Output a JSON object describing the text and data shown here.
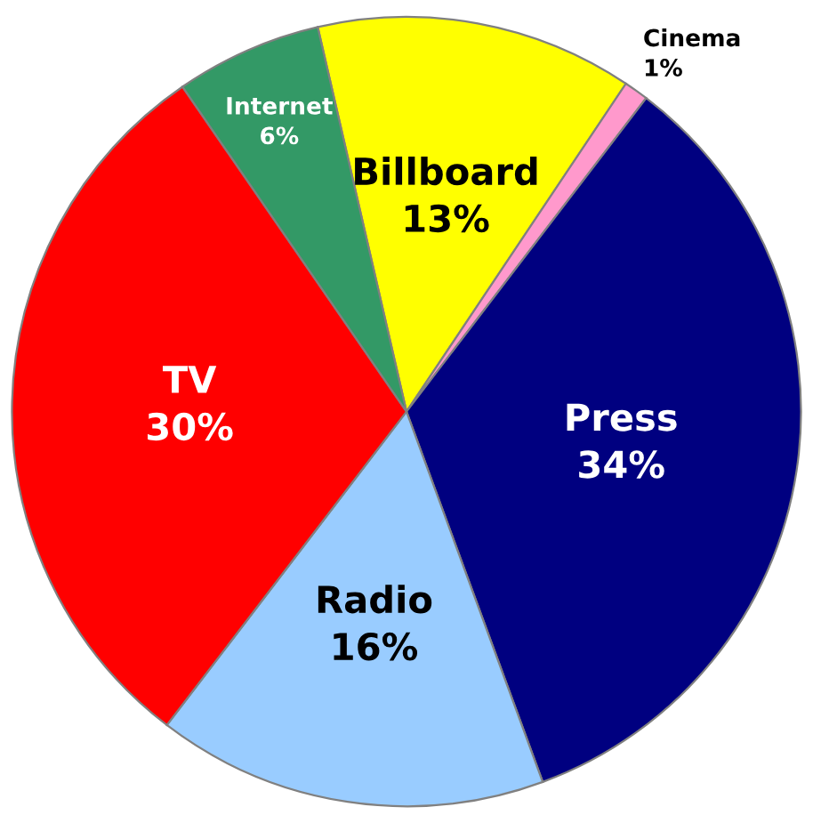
{
  "chart_data": {
    "type": "pie",
    "categories": [
      "Billboard",
      "Cinema",
      "Press",
      "Radio",
      "TV",
      "Internet"
    ],
    "values": [
      13,
      1,
      34,
      16,
      30,
      6
    ],
    "value_labels": [
      "13%",
      "1%",
      "34%",
      "16%",
      "30%",
      "6%"
    ],
    "colors": [
      "#ffff00",
      "#ff99cc",
      "#000080",
      "#99ccff",
      "#ff0000",
      "#339966"
    ],
    "legend": false
  }
}
